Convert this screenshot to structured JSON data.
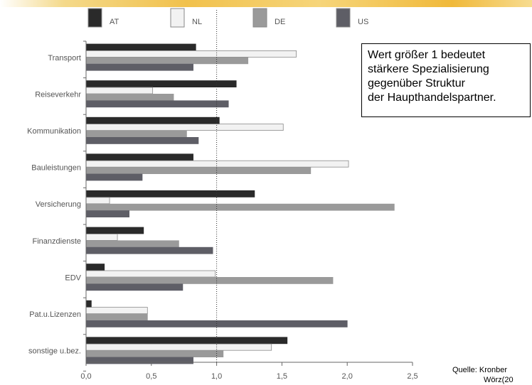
{
  "chart_data": {
    "type": "bar",
    "orientation": "horizontal",
    "categories": [
      "Transport",
      "Reiseverkehr",
      "Kommunikation",
      "Bauleistungen",
      "Versicherung",
      "Finanzdienste",
      "EDV",
      "Pat.u.Lizenzen",
      "sonstige u.bez."
    ],
    "series": [
      {
        "name": "AT",
        "color": "#2a2a2a",
        "values": [
          0.84,
          1.15,
          1.02,
          0.82,
          1.29,
          0.44,
          0.14,
          0.04,
          1.54
        ]
      },
      {
        "name": "NL",
        "color": "#f2f2f2",
        "values": [
          1.61,
          0.51,
          1.51,
          2.01,
          0.18,
          0.24,
          0.99,
          0.47,
          1.42
        ]
      },
      {
        "name": "DE",
        "color": "#9a9a9a",
        "values": [
          1.24,
          0.67,
          0.77,
          1.72,
          2.36,
          0.71,
          1.89,
          0.47,
          1.05
        ]
      },
      {
        "name": "US",
        "color": "#5e5e66",
        "values": [
          0.82,
          1.09,
          0.86,
          0.43,
          0.33,
          0.97,
          0.74,
          2.0,
          0.82
        ]
      }
    ],
    "xlim": [
      0,
      2.5
    ],
    "xticks": [
      "0,0",
      "0,5",
      "1,0",
      "1,5",
      "2,0",
      "2,5"
    ],
    "reference_line": 1.0,
    "legend_position": "top"
  },
  "annotation": {
    "lines": [
      "Wert größer 1 bedeutet",
      "stärkere Spezialisierung",
      "gegenüber Struktur",
      "der Haupthandelspartner."
    ]
  },
  "source": {
    "line1": "Quelle: Kronber",
    "line2": "Wörz(20"
  }
}
